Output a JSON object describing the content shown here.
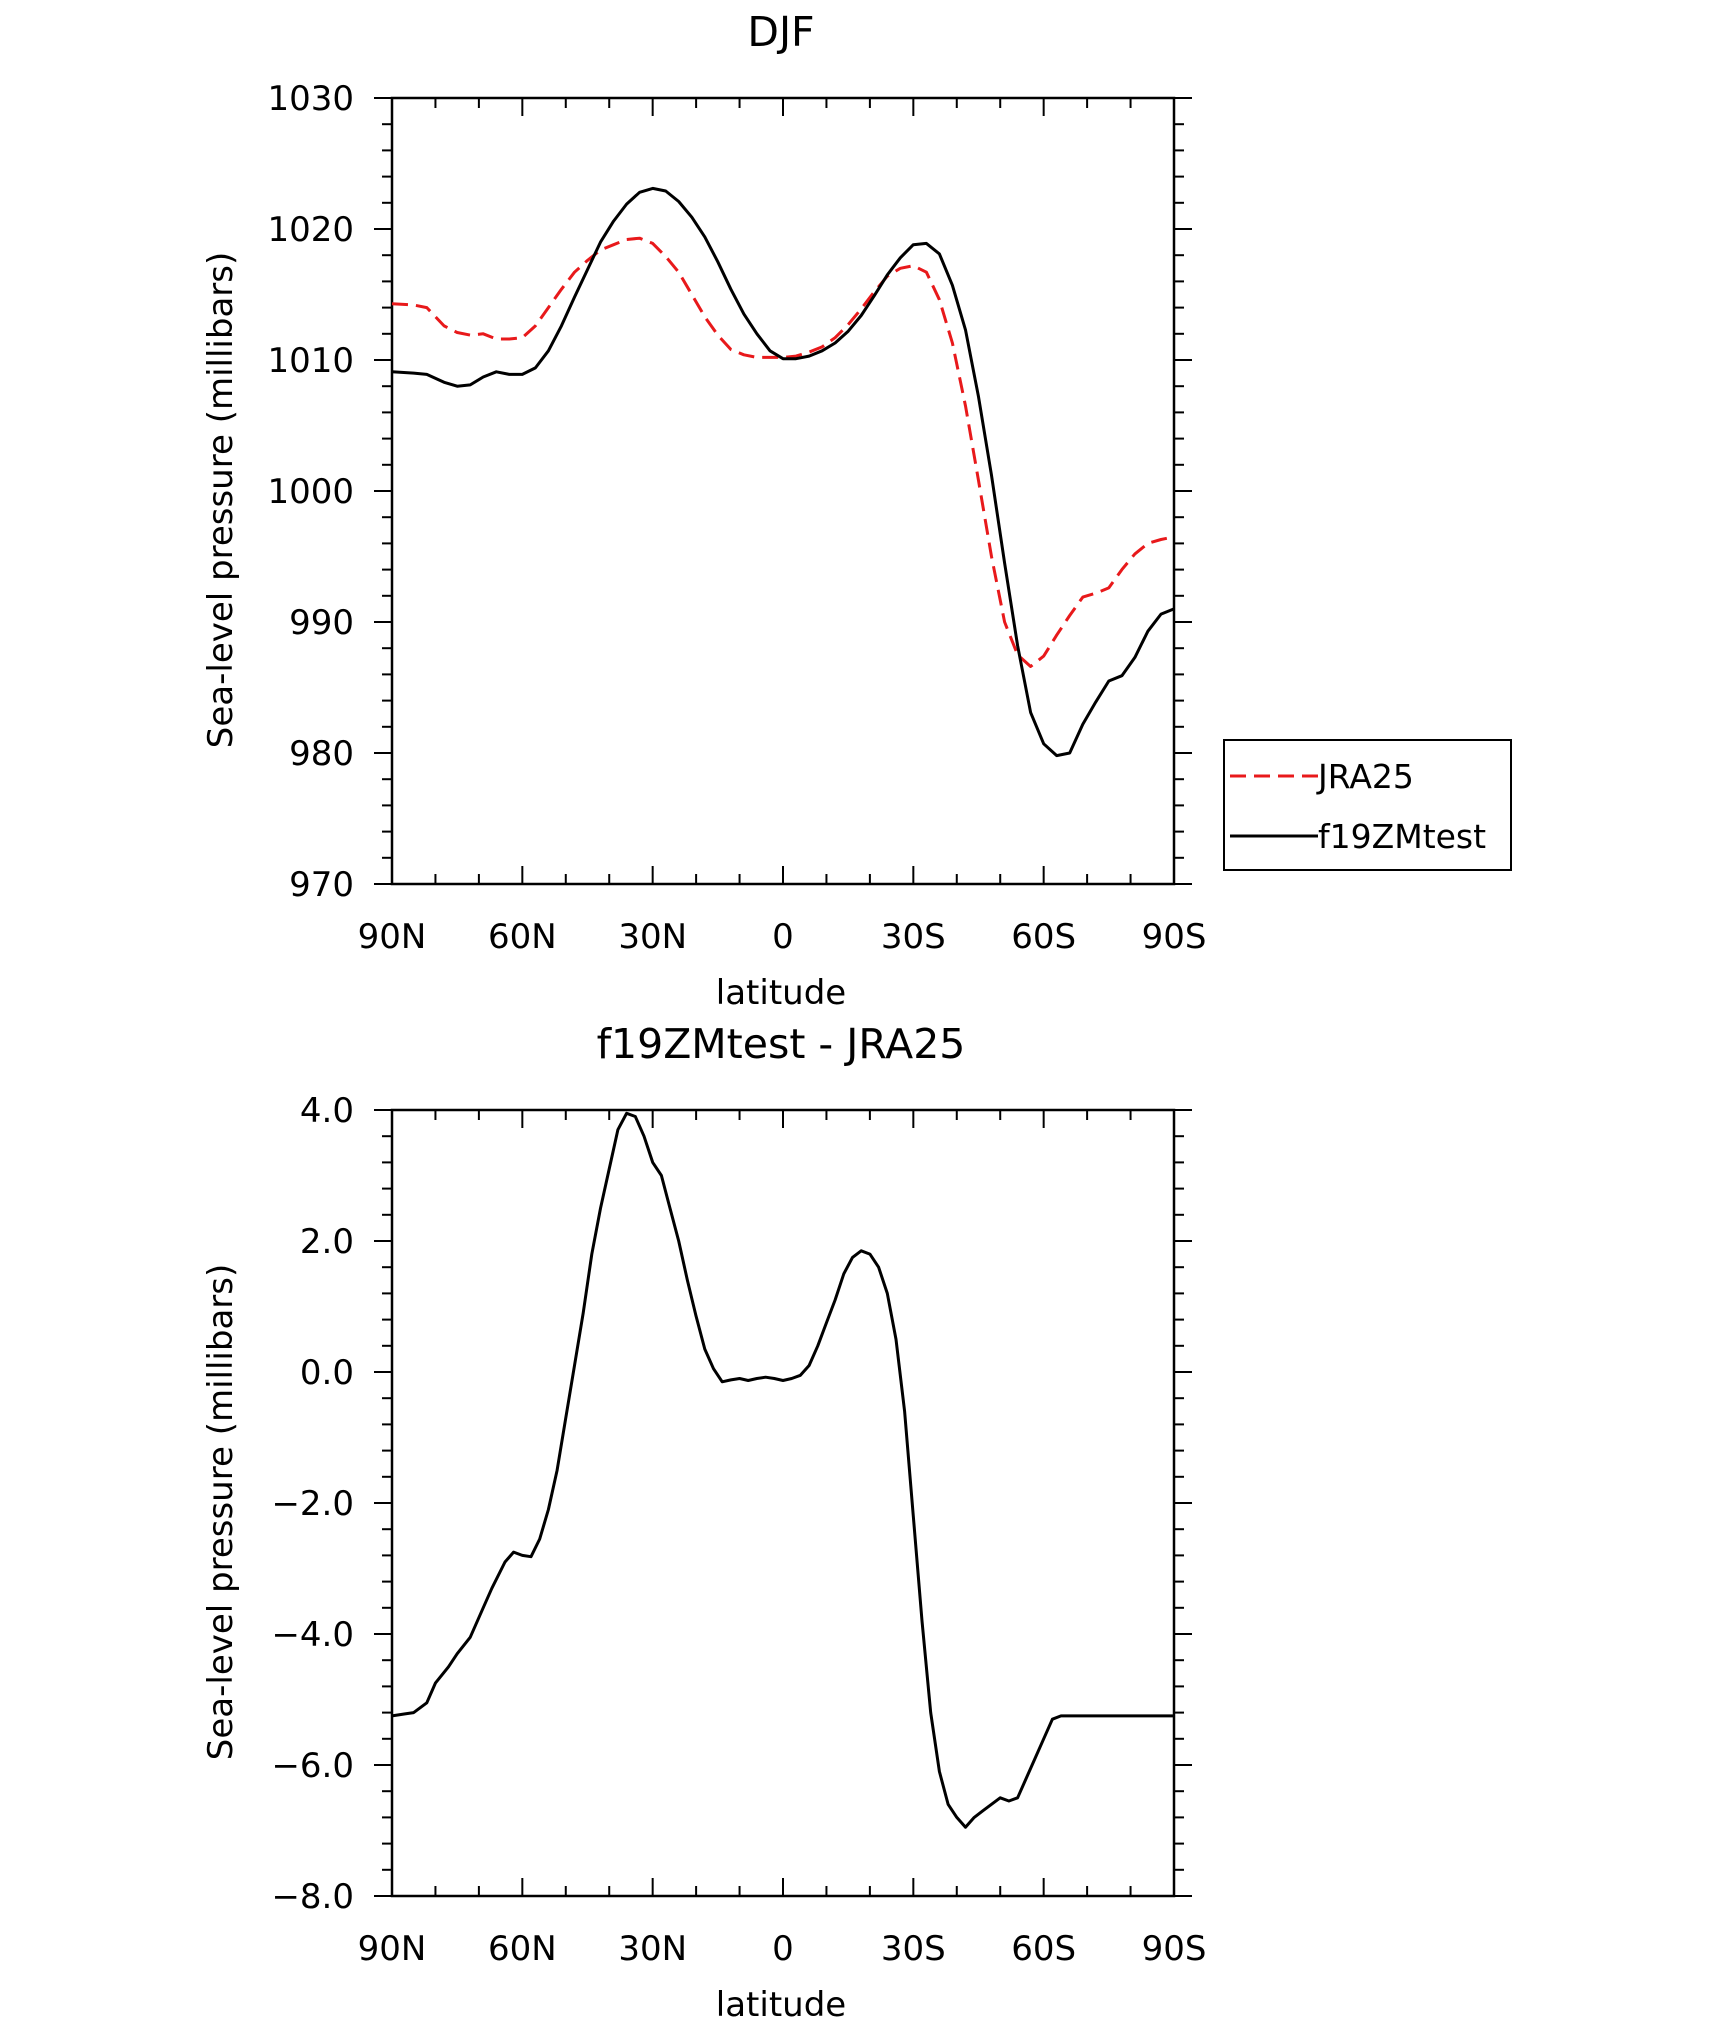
{
  "chart_data": [
    {
      "type": "line",
      "title": "DJF",
      "xlabel": "latitude",
      "ylabel": "Sea-level pressure (millibars)",
      "xlim": [
        90,
        -90
      ],
      "ylim": [
        970,
        1030
      ],
      "x_ticks": [
        90,
        60,
        30,
        0,
        -30,
        -60,
        -90
      ],
      "x_tick_labels": [
        "90N",
        "60N",
        "30N",
        "0",
        "30S",
        "60S",
        "90S"
      ],
      "y_ticks": [
        970,
        980,
        990,
        1000,
        1010,
        1020,
        1030
      ],
      "y_tick_labels": [
        "970",
        "980",
        "990",
        "1000",
        "1010",
        "1020",
        "1030"
      ],
      "legend_position": "right",
      "series": [
        {
          "name": "JRA25",
          "color": "#e8191b",
          "dash": "dashed",
          "x": [
            90,
            85,
            82,
            78,
            75,
            72,
            69,
            66,
            63,
            60,
            57,
            54,
            51,
            48,
            45,
            42,
            39,
            36,
            33,
            30,
            27,
            24,
            21,
            18,
            15,
            12,
            9,
            6,
            3,
            0,
            -3,
            -6,
            -9,
            -12,
            -15,
            -18,
            -21,
            -24,
            -27,
            -30,
            -33,
            -36,
            -39,
            -42,
            -45,
            -48,
            -51,
            -54,
            -57,
            -60,
            -63,
            -66,
            -69,
            -72,
            -75,
            -78,
            -81,
            -84,
            -87,
            -90
          ],
          "y": [
            1014.3,
            1014.2,
            1014.0,
            1012.6,
            1012.1,
            1011.9,
            1012.0,
            1011.6,
            1011.6,
            1011.7,
            1012.6,
            1014.0,
            1015.4,
            1016.7,
            1017.6,
            1018.4,
            1018.8,
            1019.2,
            1019.3,
            1018.9,
            1017.9,
            1016.7,
            1015.0,
            1013.3,
            1011.9,
            1010.8,
            1010.4,
            1010.2,
            1010.2,
            1010.2,
            1010.3,
            1010.6,
            1011.0,
            1011.7,
            1012.7,
            1013.9,
            1015.2,
            1016.4,
            1017.0,
            1017.2,
            1016.7,
            1014.6,
            1011.3,
            1006.5,
            1000.8,
            995.0,
            990.0,
            987.5,
            986.6,
            987.4,
            989.0,
            990.5,
            991.9,
            992.2,
            992.6,
            994.0,
            995.2,
            996.0,
            996.3,
            996.5
          ]
        },
        {
          "name": "f19ZMtest",
          "color": "#000000",
          "dash": "solid",
          "x": [
            90,
            85,
            82,
            78,
            75,
            72,
            69,
            66,
            63,
            60,
            57,
            54,
            51,
            48,
            45,
            42,
            39,
            36,
            33,
            30,
            27,
            24,
            21,
            18,
            15,
            12,
            9,
            6,
            3,
            0,
            -3,
            -6,
            -9,
            -12,
            -15,
            -18,
            -21,
            -24,
            -27,
            -30,
            -33,
            -36,
            -39,
            -42,
            -45,
            -48,
            -51,
            -54,
            -57,
            -60,
            -63,
            -66,
            -69,
            -72,
            -75,
            -78,
            -81,
            -84,
            -87,
            -90
          ],
          "y": [
            1009.1,
            1009.0,
            1008.9,
            1008.3,
            1008.0,
            1008.1,
            1008.7,
            1009.1,
            1008.9,
            1008.9,
            1009.4,
            1010.7,
            1012.6,
            1014.8,
            1016.9,
            1019.0,
            1020.6,
            1021.9,
            1022.8,
            1023.1,
            1022.9,
            1022.1,
            1020.9,
            1019.4,
            1017.5,
            1015.4,
            1013.5,
            1012.0,
            1010.7,
            1010.1,
            1010.1,
            1010.3,
            1010.7,
            1011.3,
            1012.2,
            1013.4,
            1014.9,
            1016.5,
            1017.8,
            1018.8,
            1018.9,
            1018.1,
            1015.7,
            1012.3,
            1007.2,
            1001.2,
            994.5,
            988.2,
            983.1,
            980.7,
            979.8,
            980.0,
            982.2,
            983.9,
            985.5,
            985.9,
            987.3,
            989.3,
            990.6,
            991.0
          ]
        }
      ]
    },
    {
      "type": "line",
      "title": "f19ZMtest - JRA25",
      "xlabel": "latitude",
      "ylabel": "Sea-level pressure (millibars)",
      "xlim": [
        90,
        -90
      ],
      "ylim": [
        -8,
        4
      ],
      "x_ticks": [
        90,
        60,
        30,
        0,
        -30,
        -60,
        -90
      ],
      "x_tick_labels": [
        "90N",
        "60N",
        "30N",
        "0",
        "30S",
        "60S",
        "90S"
      ],
      "y_ticks": [
        4,
        2,
        0,
        -2,
        -4,
        -6,
        -8
      ],
      "y_tick_labels": [
        "4.0",
        "2.0",
        "0.0",
        "−2.0",
        "−4.0",
        "−6.0",
        "−8.0"
      ],
      "series": [
        {
          "color": "#000000",
          "dash": "solid",
          "x": [
            90,
            87,
            85,
            82,
            80,
            77,
            75,
            72,
            69,
            67,
            64,
            62,
            60,
            58,
            56,
            54,
            52,
            50,
            48,
            46,
            44,
            42,
            40,
            38,
            36,
            34,
            32,
            30,
            28,
            26,
            24,
            22,
            20,
            18,
            16,
            14,
            12,
            10,
            8,
            6,
            4,
            2,
            0,
            -2,
            -4,
            -6,
            -8,
            -10,
            -12,
            -14,
            -16,
            -18,
            -20,
            -22,
            -24,
            -26,
            -28,
            -30,
            -32,
            -34,
            -36,
            -38,
            -40,
            -42,
            -44,
            -46,
            -48,
            -50,
            -52,
            -54,
            -56,
            -58,
            -60,
            -62,
            -64,
            -66,
            -68,
            -70,
            -72,
            -74,
            -76,
            -78,
            -80,
            -82,
            -84,
            -86,
            -88,
            -90
          ],
          "y": [
            -5.25,
            -5.22,
            -5.2,
            -5.05,
            -4.75,
            -4.5,
            -4.3,
            -4.05,
            -3.6,
            -3.3,
            -2.9,
            -2.75,
            -2.8,
            -2.82,
            -2.55,
            -2.1,
            -1.5,
            -0.7,
            0.1,
            0.9,
            1.8,
            2.5,
            3.1,
            3.7,
            3.95,
            3.9,
            3.6,
            3.2,
            3.0,
            2.5,
            2.0,
            1.4,
            0.85,
            0.35,
            0.05,
            -0.15,
            -0.12,
            -0.1,
            -0.13,
            -0.1,
            -0.08,
            -0.1,
            -0.13,
            -0.1,
            -0.05,
            0.1,
            0.4,
            0.75,
            1.1,
            1.5,
            1.75,
            1.85,
            1.8,
            1.6,
            1.2,
            0.5,
            -0.6,
            -2.2,
            -3.8,
            -5.2,
            -6.1,
            -6.6,
            -6.8,
            -6.95,
            -6.8,
            -6.7,
            -6.6,
            -6.5,
            -6.55,
            -6.5,
            -6.2,
            -5.9,
            -5.6,
            -5.3,
            -5.25,
            -5.25,
            -5.25,
            -5.25,
            -5.25,
            -5.25,
            -5.25,
            -5.25,
            -5.25,
            -5.25,
            -5.25,
            -5.25,
            -5.25,
            -5.25
          ]
        }
      ]
    }
  ]
}
